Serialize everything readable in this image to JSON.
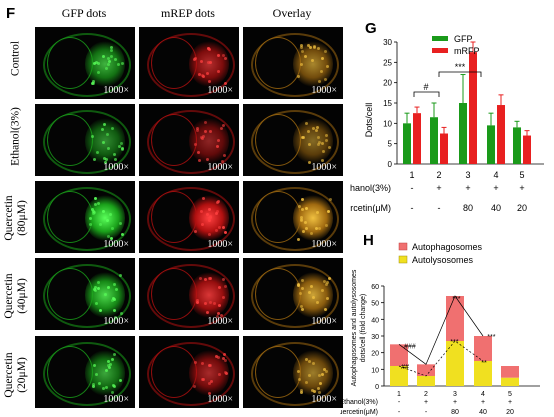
{
  "panel_F": {
    "letter": "F",
    "columns": [
      "GFP dots",
      "mREP dots",
      "Overlay"
    ],
    "rows": [
      "Control",
      "Ethanol(3%)",
      "Quercetin\n(80μM)",
      "Quercetin\n(40μM)",
      "Quercetin\n(20μM)"
    ],
    "magnification": "1000×",
    "colors": {
      "gfp": "#32c832",
      "mrfp": "#e02020",
      "overlay": "#e8a820"
    }
  },
  "panel_G": {
    "letter": "G",
    "ylabel": "Dots/cell",
    "yticks": [
      "0",
      "5",
      "10",
      "15",
      "20",
      "25",
      "30"
    ],
    "legend": [
      "GFP",
      "mRFP"
    ],
    "sig_hash": "#",
    "sig_star": "***",
    "xgroups": [
      "1",
      "2",
      "3",
      "4",
      "5"
    ],
    "ethanol_label": "Ethanol(3%)",
    "ethanol_marks": [
      "-",
      "+",
      "+",
      "+",
      "+"
    ],
    "quercetin_label": "Quercetin(μM)",
    "quercetin_marks": [
      "-",
      "-",
      "80",
      "40",
      "20"
    ]
  },
  "panel_H": {
    "letter": "H",
    "ylabel": "Autophagosomes and autolysosomes\ndots/cell (fold change)",
    "yticks": [
      "0",
      "10",
      "20",
      "30",
      "40",
      "50",
      "60"
    ],
    "legend": [
      "Autophagosomes",
      "Autolysosomes"
    ],
    "xgroups": [
      "1",
      "2",
      "3",
      "4",
      "5"
    ],
    "ethanol_label": "Ethanol(3%)",
    "ethanol_marks": [
      "-",
      "+",
      "+",
      "+",
      "+"
    ],
    "quercetin_label": "Quercetin(μM)",
    "quercetin_marks": [
      "-",
      "-",
      "80",
      "40",
      "20"
    ],
    "annotations": {
      "g1_top": "###",
      "g1_mid": "##",
      "g3_top": "***",
      "g3_mid": "***",
      "g4_top": "***",
      "g4_mid": "**"
    }
  },
  "chart_data": [
    {
      "type": "bar",
      "title": "",
      "xlabel": "",
      "ylabel": "Dots/cell",
      "categories": [
        "1",
        "2",
        "3",
        "4",
        "5"
      ],
      "ylim": [
        0,
        30
      ],
      "series": [
        {
          "name": "GFP",
          "values": [
            10,
            11.5,
            15,
            9.5,
            9
          ],
          "errors": [
            2.5,
            3.5,
            7,
            3,
            1.5
          ],
          "color": "#1a9a1a"
        },
        {
          "name": "mRFP",
          "values": [
            12.5,
            7.5,
            27.5,
            14.5,
            7
          ],
          "errors": [
            1.5,
            1.5,
            2.5,
            2.5,
            1.2
          ],
          "color": "#e82020"
        }
      ]
    },
    {
      "type": "bar",
      "stacked": true,
      "title": "",
      "xlabel": "",
      "ylabel": "Autophagosomes and autolysosomes dots/cell (fold change)",
      "categories": [
        "1",
        "2",
        "3",
        "4",
        "5"
      ],
      "ylim": [
        0,
        60
      ],
      "series": [
        {
          "name": "Autolysosomes",
          "values": [
            12,
            6,
            27,
            15,
            5
          ],
          "color": "#f0e020"
        },
        {
          "name": "Autophagosomes",
          "values": [
            13,
            7,
            27,
            15,
            7
          ],
          "color": "#f07070"
        }
      ]
    }
  ]
}
